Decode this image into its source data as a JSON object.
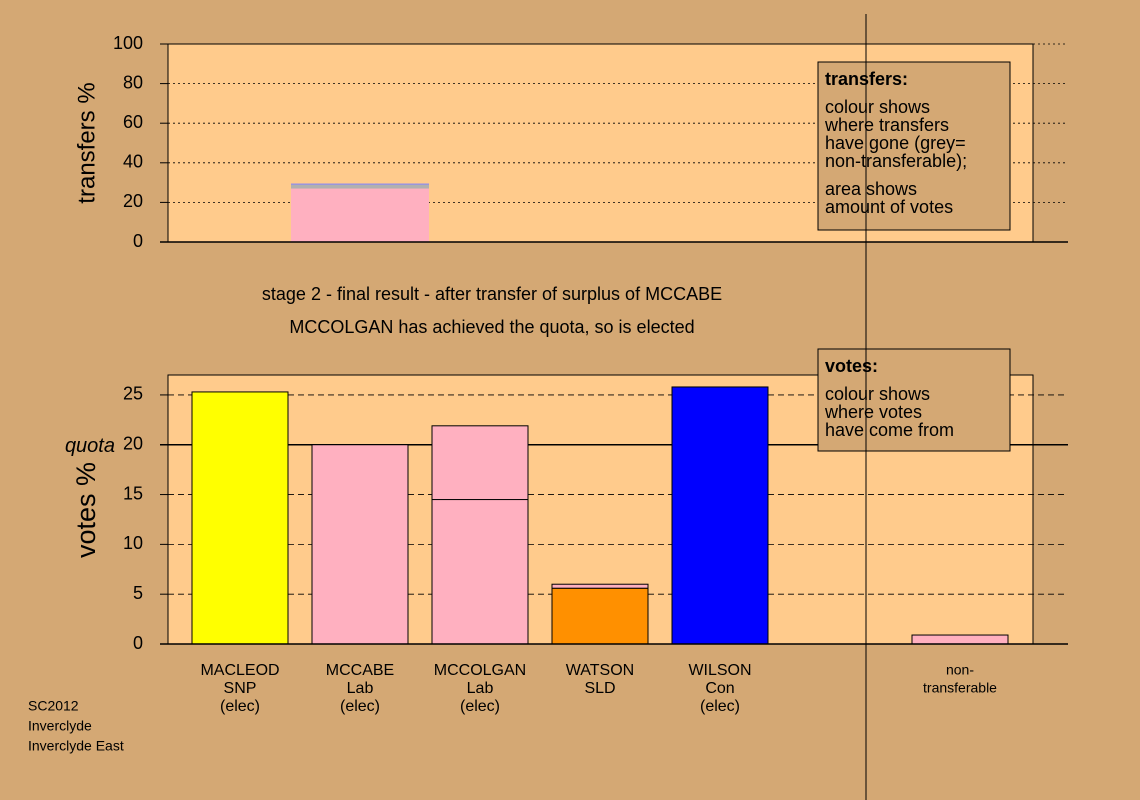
{
  "chart_data": {
    "type": "stacked-bar",
    "title": "stage 2 - final result - after transfer of surplus of MCCABE",
    "subtitle": "MCCOLGAN has achieved the quota, so is elected",
    "categories": [
      [
        "MACLEOD",
        "SNP",
        "(elec)"
      ],
      [
        "MCCABE",
        "Lab",
        "(elec)"
      ],
      [
        "MCCOLGAN",
        "Lab",
        "(elec)"
      ],
      [
        "WATSON",
        "SLD"
      ],
      [
        "WILSON",
        "Con",
        "(elec)"
      ],
      [
        "non-",
        "transferable"
      ]
    ],
    "transfers": {
      "ylabel": "transfers %",
      "ylim": [
        0,
        100
      ],
      "yticks": [
        0,
        20,
        40,
        60,
        80,
        100
      ],
      "stacks": [
        [],
        [
          {
            "value": 27,
            "color": "#ffb0c0"
          },
          {
            "value": 2,
            "color": "#b0b0b0"
          },
          {
            "value": 0.5,
            "color": "#8080ff"
          }
        ],
        [],
        [],
        [],
        []
      ],
      "legend": {
        "title": "transfers:",
        "lines": [
          [
            "colour shows",
            "where transfers",
            "have gone (grey=",
            "non-transferable);"
          ],
          [
            "area shows",
            "amount of votes"
          ]
        ]
      }
    },
    "votes": {
      "ylabel": "votes %",
      "ylim": [
        0,
        27
      ],
      "yticks": [
        0,
        5,
        10,
        15,
        20,
        25
      ],
      "quota": 20,
      "quota_label": "quota",
      "stacks": [
        [
          {
            "value": 25.3,
            "color": "#ffff00"
          }
        ],
        [
          {
            "value": 20,
            "color": "#ffb0c0"
          }
        ],
        [
          {
            "value": 14.5,
            "color": "#ffb0c0"
          },
          {
            "value": 7.4,
            "color": "#ffb0c0"
          }
        ],
        [
          {
            "value": 5.6,
            "color": "#ff9000"
          },
          {
            "value": 0.4,
            "color": "#ffb0c0"
          }
        ],
        [
          {
            "value": 25.8,
            "color": "#0000ff"
          }
        ],
        [
          {
            "value": 0.9,
            "color": "#ffb0c0"
          }
        ]
      ],
      "legend": {
        "title": "votes:",
        "lines": [
          [
            "colour shows",
            "where votes",
            "have come from"
          ]
        ]
      }
    },
    "footnote": [
      "SC2012",
      "Inverclyde",
      "Inverclyde East"
    ]
  }
}
